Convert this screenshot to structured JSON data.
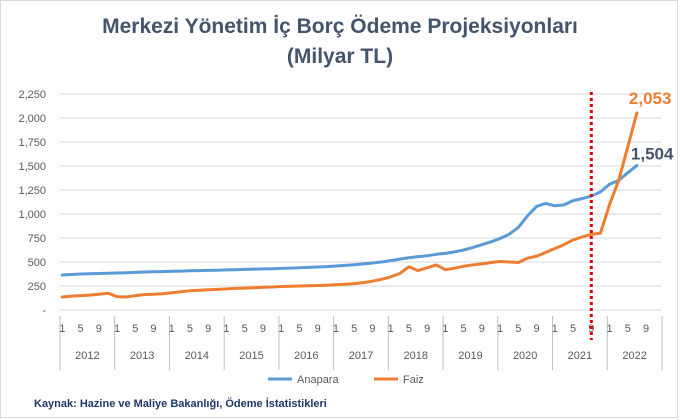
{
  "chart_data": {
    "type": "line",
    "title": "Merkezi Yönetim İç Borç Ödeme Projeksiyonları",
    "subtitle": "(Milyar TL)",
    "source": "Kaynak: Hazine ve Maliye Bakanlığı, Ödeme İstatistikleri",
    "y_ticks": [
      "-",
      "250",
      "500",
      "750",
      "1,000",
      "1,250",
      "1,500",
      "1,750",
      "2,000",
      "2,250"
    ],
    "ylim": [
      0,
      2250
    ],
    "month_ticks": [
      "1",
      "5",
      "9"
    ],
    "years": [
      "2012",
      "2013",
      "2014",
      "2015",
      "2016",
      "2017",
      "2018",
      "2019",
      "2020",
      "2021",
      "2022"
    ],
    "x_start": "2012-01",
    "months_per_point": 2,
    "divider_at": "2021-09",
    "legend_position": "bottom",
    "series": [
      {
        "name": "Anapara",
        "color": "#5b9bd5",
        "end_label": "1,504",
        "values": [
          365,
          370,
          375,
          378,
          380,
          382,
          385,
          388,
          392,
          396,
          398,
          400,
          403,
          405,
          408,
          410,
          412,
          415,
          418,
          420,
          423,
          426,
          428,
          430,
          433,
          436,
          440,
          444,
          448,
          452,
          458,
          465,
          472,
          480,
          490,
          500,
          515,
          530,
          545,
          556,
          565,
          580,
          590,
          605,
          625,
          650,
          680,
          710,
          745,
          790,
          860,
          980,
          1080,
          1110,
          1085,
          1095,
          1140,
          1160,
          1185,
          1230,
          1310,
          1350,
          1430,
          1504
        ]
      },
      {
        "name": "Faiz",
        "color": "#ed7d31",
        "end_label": "2,053",
        "values": [
          135,
          145,
          150,
          155,
          165,
          175,
          140,
          135,
          150,
          160,
          165,
          170,
          180,
          190,
          200,
          205,
          210,
          215,
          220,
          225,
          228,
          232,
          236,
          240,
          245,
          248,
          250,
          252,
          255,
          258,
          262,
          268,
          275,
          285,
          300,
          320,
          345,
          380,
          450,
          410,
          440,
          470,
          420,
          435,
          455,
          470,
          480,
          495,
          505,
          500,
          495,
          540,
          560,
          600,
          640,
          680,
          730,
          760,
          790,
          800,
          1100,
          1350,
          1700,
          2053
        ]
      }
    ]
  }
}
